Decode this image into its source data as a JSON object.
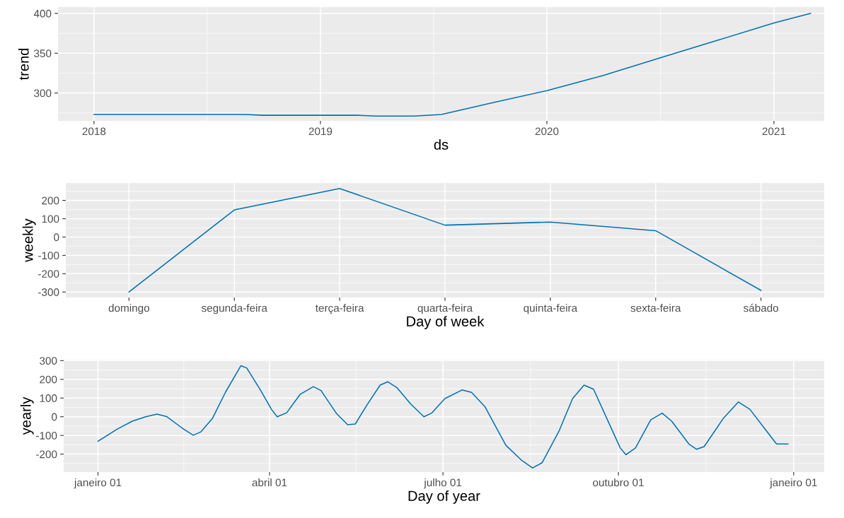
{
  "chart_data": [
    {
      "type": "line",
      "ylabel": "trend",
      "xlabel": "ds",
      "grid": true,
      "x": [
        "2018-01-01",
        "2018-09-01",
        "2018-10-01",
        "2019-03-01",
        "2019-04-01",
        "2019-06-01",
        "2019-07-15",
        "2019-10-01",
        "2020-01-01",
        "2020-04-01",
        "2020-07-01",
        "2020-10-01",
        "2021-01-01",
        "2021-03-01"
      ],
      "series": [
        {
          "color": "#0072b2",
          "values": [
            273,
            273,
            272,
            272,
            271,
            271,
            273,
            287,
            303,
            322,
            344,
            366,
            388,
            400
          ]
        }
      ],
      "xlim": [
        "2017-11-04",
        "2021-03-23"
      ],
      "xticks": [
        {
          "value": "2018",
          "label": "2018"
        },
        {
          "value": "2019",
          "label": "2019"
        },
        {
          "value": "2020",
          "label": "2020"
        },
        {
          "value": "2021",
          "label": "2021"
        }
      ],
      "ylim": [
        265,
        408
      ],
      "yticks": [
        300,
        350,
        400
      ]
    },
    {
      "type": "line",
      "ylabel": "weekly",
      "xlabel": "Day of week",
      "grid": true,
      "categories": [
        "domingo",
        "segunda-feira",
        "terça-feira",
        "quarta-feira",
        "quinta-feira",
        "sexta-feira",
        "sábado"
      ],
      "series": [
        {
          "color": "#0072b2",
          "values": [
            -300,
            148,
            265,
            65,
            82,
            35,
            -291
          ]
        }
      ],
      "ylim": [
        -330,
        295
      ],
      "yticks": [
        200,
        100,
        0,
        -100,
        -200,
        -300
      ]
    },
    {
      "type": "line",
      "ylabel": "yearly",
      "xlabel": "Day of year",
      "grid": true,
      "x": [
        "2017-01-01",
        "2017-01-11",
        "2017-01-19",
        "2017-01-26",
        "2017-02-01",
        "2017-02-06",
        "2017-02-15",
        "2017-02-20",
        "2017-02-24",
        "2017-03-02",
        "2017-03-09",
        "2017-03-17",
        "2017-03-20",
        "2017-03-27",
        "2017-04-02",
        "2017-04-05",
        "2017-04-10",
        "2017-04-17",
        "2017-04-24",
        "2017-04-28",
        "2017-05-06",
        "2017-05-12",
        "2017-05-16",
        "2017-05-22",
        "2017-05-29",
        "2017-06-02",
        "2017-06-07",
        "2017-06-14",
        "2017-06-21",
        "2017-06-25",
        "2017-07-02",
        "2017-07-11",
        "2017-07-16",
        "2017-07-23",
        "2017-08-03",
        "2017-08-11",
        "2017-08-17",
        "2017-08-22",
        "2017-08-31",
        "2017-09-07",
        "2017-09-13",
        "2017-09-18",
        "2017-09-25",
        "2017-10-02",
        "2017-10-05",
        "2017-10-10",
        "2017-10-18",
        "2017-10-24",
        "2017-10-29",
        "2017-11-07",
        "2017-11-11",
        "2017-11-15",
        "2017-11-25",
        "2017-12-03",
        "2017-12-09",
        "2017-12-16",
        "2017-12-23",
        "2017-12-29"
      ],
      "series": [
        {
          "color": "#0072b2",
          "values": [
            -131,
            -67,
            -24,
            0,
            14,
            1,
            -67,
            -99,
            -81,
            -10,
            133,
            273,
            261,
            147,
            40,
            0,
            21,
            119,
            161,
            140,
            19,
            -43,
            -39,
            61,
            169,
            187,
            154,
            69,
            0,
            19,
            97,
            143,
            130,
            54,
            -153,
            -231,
            -274,
            -246,
            -74,
            97,
            169,
            147,
            -10,
            -167,
            -203,
            -167,
            -17,
            19,
            -24,
            -146,
            -174,
            -160,
            -10,
            79,
            40,
            -53,
            -146,
            -146
          ]
        }
      ],
      "xlim": [
        "2016-12-14",
        "2018-01-17"
      ],
      "xticks": [
        {
          "value": "2017-01-01",
          "label": "janeiro 01"
        },
        {
          "value": "2017-04-01",
          "label": "abril 01"
        },
        {
          "value": "2017-07-01",
          "label": "julho 01"
        },
        {
          "value": "2017-10-01",
          "label": "outubro 01"
        },
        {
          "value": "2018-01-01",
          "label": "janeiro 01"
        }
      ],
      "ylim": [
        -296,
        305
      ],
      "yticks": [
        300,
        200,
        100,
        0,
        -100,
        -200
      ]
    }
  ]
}
